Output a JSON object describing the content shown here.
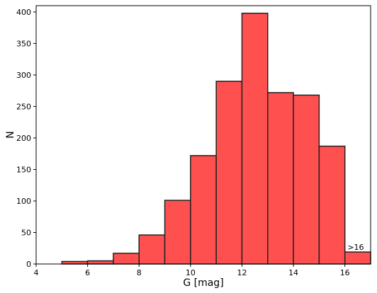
{
  "chart_data": {
    "type": "bar",
    "title": "",
    "xlabel": "G [mag]",
    "ylabel": "N",
    "xlim": [
      4,
      17
    ],
    "ylim": [
      0,
      410
    ],
    "x_ticks": [
      4,
      6,
      8,
      10,
      12,
      14,
      16
    ],
    "y_ticks": [
      0,
      50,
      100,
      150,
      200,
      250,
      300,
      350,
      400
    ],
    "bins": [
      {
        "start": 5,
        "end": 6,
        "value": 4
      },
      {
        "start": 6,
        "end": 7,
        "value": 5
      },
      {
        "start": 7,
        "end": 8,
        "value": 17
      },
      {
        "start": 8,
        "end": 9,
        "value": 46
      },
      {
        "start": 9,
        "end": 10,
        "value": 101
      },
      {
        "start": 10,
        "end": 11,
        "value": 172
      },
      {
        "start": 11,
        "end": 12,
        "value": 290
      },
      {
        "start": 12,
        "end": 13,
        "value": 398
      },
      {
        "start": 13,
        "end": 14,
        "value": 272
      },
      {
        "start": 14,
        "end": 15,
        "value": 268
      },
      {
        "start": 15,
        "end": 16,
        "value": 187
      },
      {
        "start": 16,
        "end": 17,
        "value": 19
      }
    ],
    "annotation": {
      "text": ">16",
      "x": 16.1,
      "y": 19
    },
    "bar_color": "#ff5050",
    "edge_color": "#222222",
    "grid": false
  }
}
